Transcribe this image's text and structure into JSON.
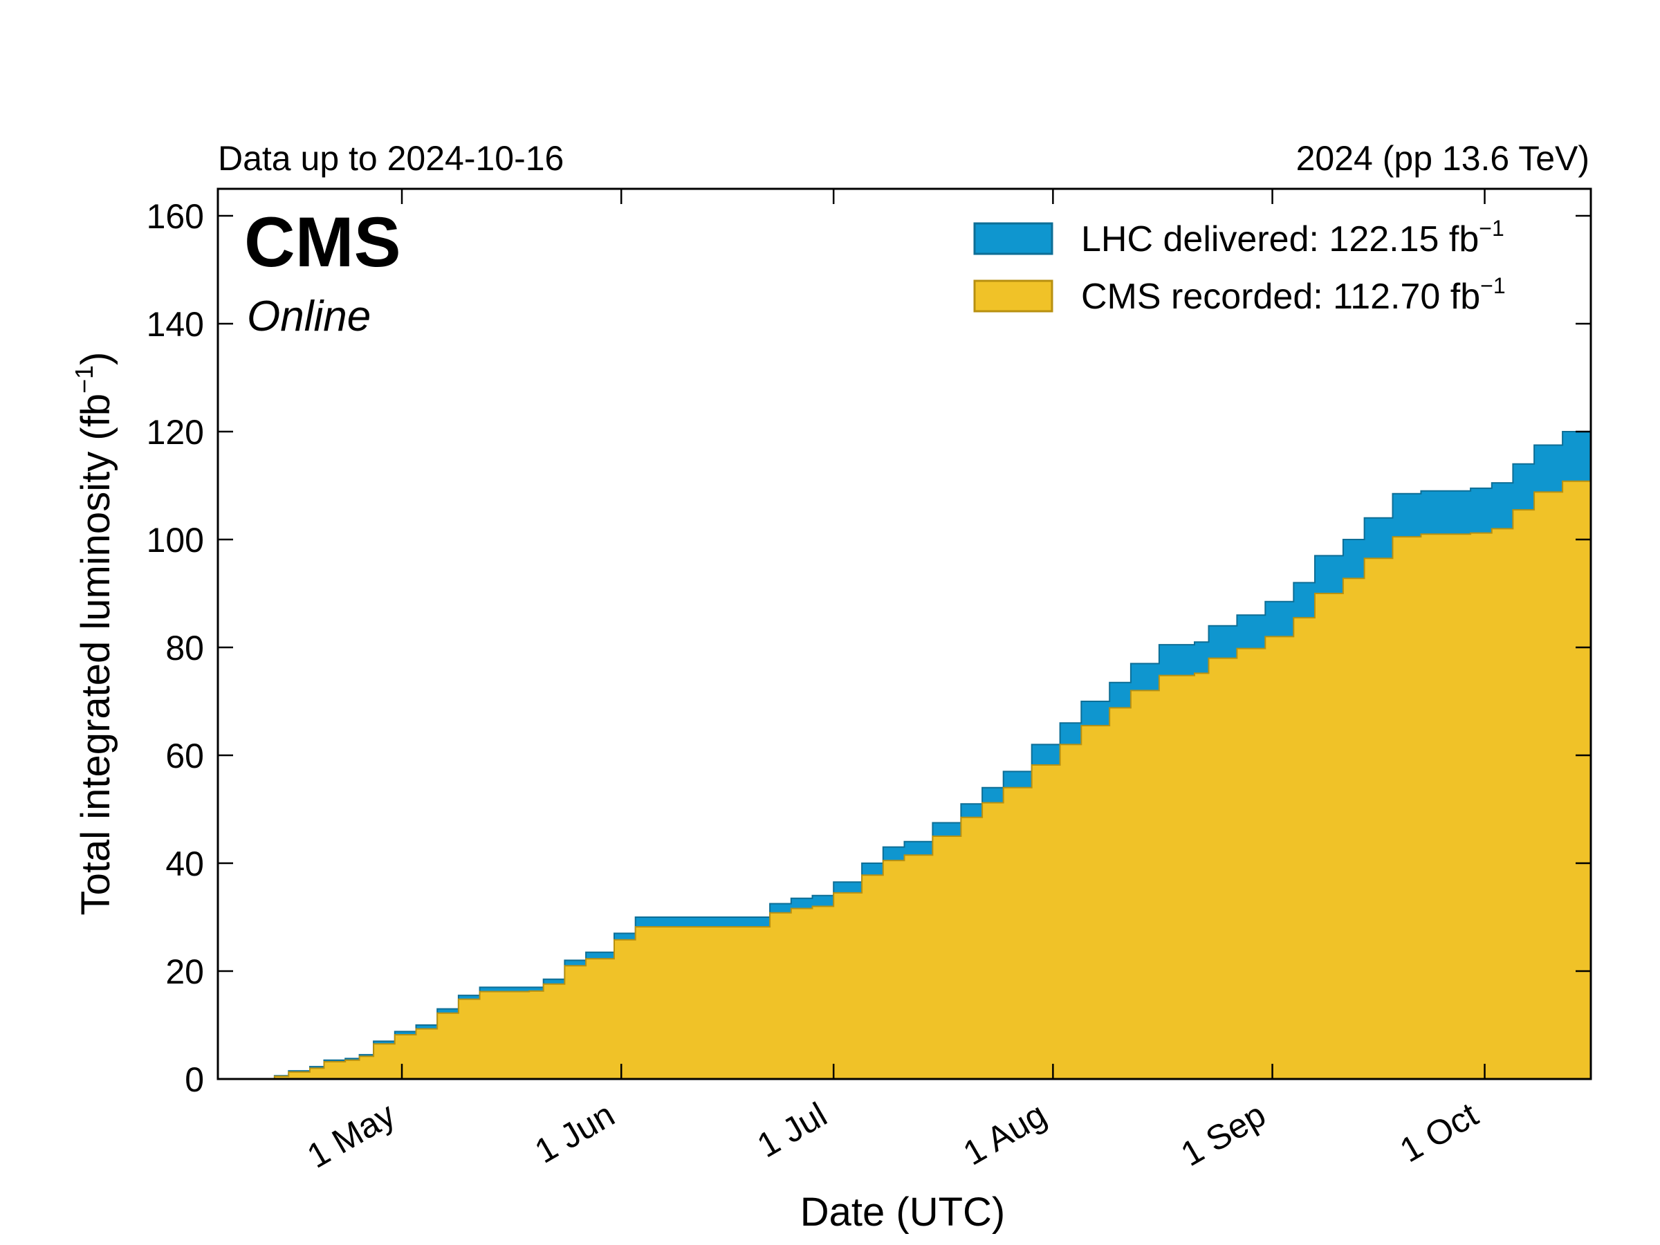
{
  "header": {
    "left_text": "Data up to 2024-10-16",
    "right_text": "2024 (pp 13.6 TeV)"
  },
  "branding": {
    "experiment": "CMS",
    "status": "Online"
  },
  "colors": {
    "delivered_fill": "#0f96cf",
    "delivered_edge": "#0d6e96",
    "recorded_fill": "#f0c228",
    "recorded_edge": "#b89010",
    "axis": "#000000"
  },
  "chart_data": {
    "type": "area",
    "xlabel": "Date (UTC)",
    "ylabel_main": "Total integrated luminosity (fb",
    "ylabel_sup": "−1",
    "ylabel_close": ")",
    "x_is_date": true,
    "xlim": [
      "2024-04-05",
      "2024-10-16"
    ],
    "ylim": [
      0,
      165
    ],
    "yticks": [
      0,
      20,
      40,
      60,
      80,
      100,
      120,
      140,
      160
    ],
    "xticks": [
      {
        "date": "2024-05-01",
        "label": "1 May"
      },
      {
        "date": "2024-06-01",
        "label": "1 Jun"
      },
      {
        "date": "2024-07-01",
        "label": "1 Jul"
      },
      {
        "date": "2024-08-01",
        "label": "1 Aug"
      },
      {
        "date": "2024-09-01",
        "label": "1 Sep"
      },
      {
        "date": "2024-10-01",
        "label": "1 Oct"
      }
    ],
    "legend_position": "top-right",
    "series": [
      {
        "name": "LHC delivered",
        "legend_value": "122.15 fb",
        "legend_sup": "−1",
        "points": [
          [
            "2024-04-05",
            0
          ],
          [
            "2024-04-12",
            0
          ],
          [
            "2024-04-13",
            0.6
          ],
          [
            "2024-04-15",
            1.5
          ],
          [
            "2024-04-18",
            2.3
          ],
          [
            "2024-04-20",
            3.5
          ],
          [
            "2024-04-23",
            3.8
          ],
          [
            "2024-04-25",
            4.5
          ],
          [
            "2024-04-27",
            7
          ],
          [
            "2024-04-30",
            8.8
          ],
          [
            "2024-05-03",
            10
          ],
          [
            "2024-05-06",
            13
          ],
          [
            "2024-05-09",
            15.5
          ],
          [
            "2024-05-12",
            17
          ],
          [
            "2024-05-19",
            17
          ],
          [
            "2024-05-21",
            18.5
          ],
          [
            "2024-05-24",
            22
          ],
          [
            "2024-05-27",
            23.5
          ],
          [
            "2024-05-31",
            27
          ],
          [
            "2024-06-03",
            30
          ],
          [
            "2024-06-19",
            30
          ],
          [
            "2024-06-22",
            32.5
          ],
          [
            "2024-06-25",
            33.5
          ],
          [
            "2024-06-28",
            34
          ],
          [
            "2024-07-01",
            36.5
          ],
          [
            "2024-07-05",
            40
          ],
          [
            "2024-07-08",
            43
          ],
          [
            "2024-07-11",
            44
          ],
          [
            "2024-07-15",
            47.5
          ],
          [
            "2024-07-19",
            51
          ],
          [
            "2024-07-22",
            54
          ],
          [
            "2024-07-25",
            57
          ],
          [
            "2024-07-29",
            62
          ],
          [
            "2024-08-02",
            66
          ],
          [
            "2024-08-05",
            70
          ],
          [
            "2024-08-09",
            73.5
          ],
          [
            "2024-08-12",
            77
          ],
          [
            "2024-08-16",
            80.5
          ],
          [
            "2024-08-21",
            81
          ],
          [
            "2024-08-23",
            84
          ],
          [
            "2024-08-27",
            86
          ],
          [
            "2024-08-31",
            88.5
          ],
          [
            "2024-09-04",
            92
          ],
          [
            "2024-09-07",
            97
          ],
          [
            "2024-09-11",
            100
          ],
          [
            "2024-09-14",
            104
          ],
          [
            "2024-09-18",
            108.5
          ],
          [
            "2024-09-22",
            109
          ],
          [
            "2024-09-29",
            109.5
          ],
          [
            "2024-10-02",
            110.5
          ],
          [
            "2024-10-05",
            114
          ],
          [
            "2024-10-08",
            117.5
          ],
          [
            "2024-10-12",
            120
          ],
          [
            "2024-10-16",
            122.15
          ]
        ]
      },
      {
        "name": "CMS recorded",
        "legend_value": "112.70 fb",
        "legend_sup": "−1",
        "points": [
          [
            "2024-04-05",
            0
          ],
          [
            "2024-04-12",
            0
          ],
          [
            "2024-04-13",
            0.5
          ],
          [
            "2024-04-15",
            1.3
          ],
          [
            "2024-04-18",
            2.0
          ],
          [
            "2024-04-20",
            3.2
          ],
          [
            "2024-04-23",
            3.5
          ],
          [
            "2024-04-25",
            4.2
          ],
          [
            "2024-04-27",
            6.5
          ],
          [
            "2024-04-30",
            8.2
          ],
          [
            "2024-05-03",
            9.3
          ],
          [
            "2024-05-06",
            12.2
          ],
          [
            "2024-05-09",
            14.8
          ],
          [
            "2024-05-12",
            16.2
          ],
          [
            "2024-05-19",
            16.3
          ],
          [
            "2024-05-21",
            17.6
          ],
          [
            "2024-05-24",
            21
          ],
          [
            "2024-05-27",
            22.3
          ],
          [
            "2024-05-31",
            25.8
          ],
          [
            "2024-06-03",
            28.2
          ],
          [
            "2024-06-19",
            28.2
          ],
          [
            "2024-06-22",
            30.8
          ],
          [
            "2024-06-25",
            31.6
          ],
          [
            "2024-06-28",
            32
          ],
          [
            "2024-07-01",
            34.5
          ],
          [
            "2024-07-05",
            37.8
          ],
          [
            "2024-07-08",
            40.5
          ],
          [
            "2024-07-11",
            41.5
          ],
          [
            "2024-07-15",
            45
          ],
          [
            "2024-07-19",
            48.5
          ],
          [
            "2024-07-22",
            51.2
          ],
          [
            "2024-07-25",
            54
          ],
          [
            "2024-07-29",
            58.2
          ],
          [
            "2024-08-02",
            62
          ],
          [
            "2024-08-05",
            65.5
          ],
          [
            "2024-08-09",
            68.8
          ],
          [
            "2024-08-12",
            72
          ],
          [
            "2024-08-16",
            74.8
          ],
          [
            "2024-08-21",
            75.2
          ],
          [
            "2024-08-23",
            78
          ],
          [
            "2024-08-27",
            79.8
          ],
          [
            "2024-08-31",
            82
          ],
          [
            "2024-09-04",
            85.5
          ],
          [
            "2024-09-07",
            90
          ],
          [
            "2024-09-11",
            92.8
          ],
          [
            "2024-09-14",
            96.5
          ],
          [
            "2024-09-18",
            100.5
          ],
          [
            "2024-09-22",
            101
          ],
          [
            "2024-09-29",
            101.2
          ],
          [
            "2024-10-02",
            102
          ],
          [
            "2024-10-05",
            105.5
          ],
          [
            "2024-10-08",
            108.8
          ],
          [
            "2024-10-12",
            110.8
          ],
          [
            "2024-10-16",
            112.7
          ]
        ]
      }
    ]
  }
}
